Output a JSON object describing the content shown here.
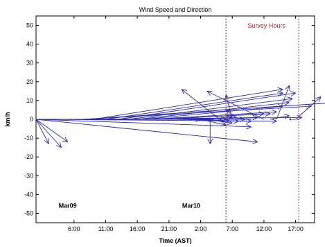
{
  "chart_data": {
    "type": "quiver",
    "title": "Wind Speed and Direction",
    "xlabel": "Time (AST)",
    "ylabel": "km/h",
    "ylim": [
      -55,
      55
    ],
    "xlim_hours": [
      0,
      44
    ],
    "xticks": [
      {
        "hour": 6,
        "label": "6:00"
      },
      {
        "hour": 11,
        "label": "11:00"
      },
      {
        "hour": 16,
        "label": "16:00"
      },
      {
        "hour": 21,
        "label": "21:00"
      },
      {
        "hour": 26,
        "label": "2:00"
      },
      {
        "hour": 31,
        "label": "7:00"
      },
      {
        "hour": 36,
        "label": "12:00"
      },
      {
        "hour": 41,
        "label": "17:00"
      }
    ],
    "yticks": [
      -50,
      -40,
      -30,
      -20,
      -10,
      0,
      10,
      20,
      30,
      40,
      50
    ],
    "date_labels": [
      {
        "hour": 5,
        "label": "Mar09"
      },
      {
        "hour": 24.5,
        "label": "Mar10"
      }
    ],
    "survey": {
      "label": "Survey Hours",
      "start_hour": 30,
      "end_hour": 41.5,
      "color": "#d11a2a"
    },
    "arrow_color": "#2b2bb0",
    "vectors": [
      {
        "x": 0,
        "u": 35,
        "v": -12
      },
      {
        "x": 0,
        "u": 34,
        "v": -4
      },
      {
        "x": 0,
        "u": 38,
        "v": -1
      },
      {
        "x": 0,
        "u": 26,
        "v": 0
      },
      {
        "x": 0,
        "u": 4,
        "v": -15
      },
      {
        "x": 0,
        "u": 5,
        "v": -12
      },
      {
        "x": 0,
        "u": 2,
        "v": -13
      },
      {
        "x": 7.5,
        "u": 40,
        "v": 9
      },
      {
        "x": 7.5,
        "u": 36,
        "v": 7
      },
      {
        "x": 8,
        "u": 34,
        "v": 1
      },
      {
        "x": 9,
        "u": 30,
        "v": 16
      },
      {
        "x": 11,
        "u": 28,
        "v": 14
      },
      {
        "x": 13,
        "u": 28,
        "v": 14
      },
      {
        "x": 14.5,
        "u": 26,
        "v": 11
      },
      {
        "x": 16,
        "u": 24,
        "v": 9
      },
      {
        "x": 17,
        "u": 22,
        "v": 7
      },
      {
        "x": 18,
        "u": 20,
        "v": 4
      },
      {
        "x": 19,
        "u": 18,
        "v": 3
      },
      {
        "x": 20,
        "u": 16,
        "v": 3
      },
      {
        "x": 21,
        "u": 14,
        "v": 1
      },
      {
        "x": 22,
        "u": 12,
        "v": -1
      },
      {
        "x": 23,
        "u": 10,
        "v": 0
      },
      {
        "x": 24,
        "u": 8,
        "v": -1
      },
      {
        "x": 25,
        "u": 6,
        "v": 1
      },
      {
        "x": 25.5,
        "u": 5,
        "v": -1
      },
      {
        "x": 26,
        "u": 4,
        "v": -3
      },
      {
        "x": 27,
        "u": 3,
        "v": 0
      },
      {
        "x": 27,
        "u": 4,
        "v": -2
      },
      {
        "x": 27.5,
        "u": 0,
        "v": -13
      },
      {
        "x": 29,
        "u": -6,
        "v": 16
      },
      {
        "x": 31,
        "u": -1,
        "v": 13
      },
      {
        "x": 32,
        "u": -2,
        "v": 5
      },
      {
        "x": 33,
        "u": -3,
        "v": 2
      },
      {
        "x": 34,
        "u": -5,
        "v": 0
      },
      {
        "x": 36,
        "u": -9,
        "v": 15
      },
      {
        "x": 37,
        "u": 3,
        "v": 2
      },
      {
        "x": 38,
        "u": 2,
        "v": 18
      },
      {
        "x": 41,
        "u": 4,
        "v": 12
      },
      {
        "x": 41,
        "u": -1,
        "v": 0
      }
    ]
  }
}
